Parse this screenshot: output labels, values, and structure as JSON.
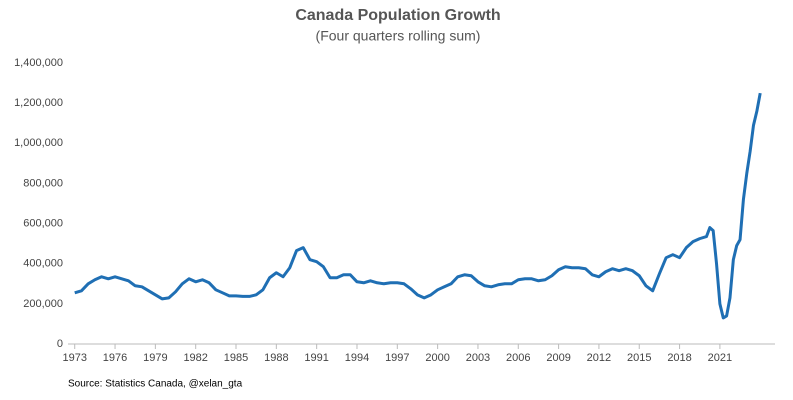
{
  "chart_data": {
    "type": "line",
    "title": "Canada Population Growth",
    "subtitle": "(Four quarters rolling sum)",
    "source": "Source: Statistics Canada, @xelan_gta",
    "x": [
      1973.0,
      1973.5,
      1974.0,
      1974.5,
      1975.0,
      1975.5,
      1976.0,
      1976.5,
      1977.0,
      1977.5,
      1978.0,
      1978.5,
      1979.0,
      1979.5,
      1980.0,
      1980.5,
      1981.0,
      1981.5,
      1982.0,
      1982.5,
      1983.0,
      1983.5,
      1984.0,
      1984.5,
      1985.0,
      1985.5,
      1986.0,
      1986.5,
      1987.0,
      1987.5,
      1988.0,
      1988.5,
      1989.0,
      1989.5,
      1990.0,
      1990.5,
      1991.0,
      1991.5,
      1992.0,
      1992.5,
      1993.0,
      1993.5,
      1994.0,
      1994.5,
      1995.0,
      1995.5,
      1996.0,
      1996.5,
      1997.0,
      1997.5,
      1998.0,
      1998.5,
      1999.0,
      1999.5,
      2000.0,
      2000.5,
      2001.0,
      2001.5,
      2002.0,
      2002.5,
      2003.0,
      2003.5,
      2004.0,
      2004.5,
      2005.0,
      2005.5,
      2006.0,
      2006.5,
      2007.0,
      2007.5,
      2008.0,
      2008.5,
      2009.0,
      2009.5,
      2010.0,
      2010.5,
      2011.0,
      2011.5,
      2012.0,
      2012.5,
      2013.0,
      2013.5,
      2014.0,
      2014.5,
      2015.0,
      2015.5,
      2016.0,
      2016.5,
      2017.0,
      2017.5,
      2018.0,
      2018.5,
      2019.0,
      2019.5,
      2020.0,
      2020.25,
      2020.5,
      2020.75,
      2021.0,
      2021.25,
      2021.5,
      2021.75,
      2022.0,
      2022.25,
      2022.5,
      2022.75,
      2023.0,
      2023.25,
      2023.5,
      2023.75,
      2024.0
    ],
    "series": [
      {
        "name": "Population growth",
        "color": "#1f6fb4",
        "values": [
          255000,
          265000,
          300000,
          320000,
          335000,
          325000,
          335000,
          325000,
          315000,
          290000,
          285000,
          265000,
          245000,
          225000,
          230000,
          260000,
          300000,
          325000,
          310000,
          320000,
          305000,
          270000,
          255000,
          240000,
          240000,
          237000,
          237000,
          245000,
          270000,
          330000,
          355000,
          335000,
          380000,
          465000,
          480000,
          420000,
          410000,
          385000,
          330000,
          330000,
          345000,
          345000,
          310000,
          305000,
          315000,
          305000,
          300000,
          305000,
          305000,
          300000,
          275000,
          245000,
          230000,
          245000,
          270000,
          285000,
          300000,
          335000,
          345000,
          340000,
          310000,
          290000,
          285000,
          295000,
          300000,
          300000,
          320000,
          325000,
          325000,
          315000,
          320000,
          340000,
          370000,
          385000,
          380000,
          380000,
          375000,
          345000,
          335000,
          360000,
          375000,
          365000,
          375000,
          365000,
          340000,
          290000,
          265000,
          350000,
          430000,
          445000,
          430000,
          480000,
          510000,
          525000,
          535000,
          580000,
          565000,
          400000,
          200000,
          130000,
          140000,
          230000,
          420000,
          490000,
          520000,
          720000,
          850000,
          960000,
          1090000,
          1160000,
          1250000
        ]
      }
    ],
    "xlim": [
      1972.5,
      2025.1
    ],
    "xticks": [
      1973,
      1976,
      1979,
      1982,
      1985,
      1988,
      1991,
      1994,
      1997,
      2000,
      2003,
      2006,
      2009,
      2012,
      2015,
      2018,
      2021
    ],
    "ylim": [
      0,
      1400000
    ],
    "yticks": [
      0,
      {
        "value": 200000,
        "label": "200,000"
      },
      {
        "value": 400000,
        "label": "400,000"
      },
      {
        "value": 600000,
        "label": "600,000"
      },
      {
        "value": 800000,
        "label": "800,000"
      },
      {
        "value": 1000000,
        "label": "1,000,000"
      },
      {
        "value": 1200000,
        "label": "1,200,000"
      },
      {
        "value": 1400000,
        "label": "1,400,000"
      }
    ],
    "grid": false
  }
}
